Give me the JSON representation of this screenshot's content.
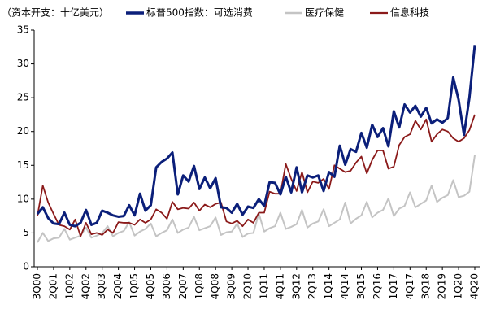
{
  "chart_data": {
    "type": "line",
    "title": "（资本开支：十亿美元）",
    "categories": [
      "3Q00",
      null,
      null,
      "2Q01",
      null,
      null,
      "1Q02",
      null,
      null,
      "4Q02",
      null,
      null,
      "3Q03",
      null,
      null,
      "2Q04",
      null,
      null,
      "1Q05",
      null,
      null,
      "4Q05",
      null,
      null,
      "3Q06",
      null,
      null,
      "2Q07",
      null,
      null,
      "1Q08",
      null,
      null,
      "4Q08",
      null,
      null,
      "3Q09",
      null,
      null,
      "2Q10",
      null,
      null,
      "1Q11",
      null,
      null,
      "4Q11",
      null,
      null,
      "3Q12",
      null,
      null,
      "2Q13",
      null,
      null,
      "1Q14",
      null,
      null,
      "4Q14",
      null,
      null,
      "3Q15",
      null,
      null,
      "2Q16",
      null,
      null,
      "1Q17",
      null,
      null,
      "4Q17",
      null,
      null,
      "3Q18",
      null,
      null,
      "2Q19",
      null,
      null,
      "1Q20",
      null,
      null,
      "4Q20"
    ],
    "series": [
      {
        "name": "标普500指数：可选消费",
        "color": "#0b1f7a",
        "width": 3,
        "values": [
          7.8,
          8.8,
          7.2,
          6.4,
          6.3,
          8.0,
          6.2,
          6.0,
          6.5,
          8.4,
          6.2,
          6.5,
          8.3,
          8.0,
          7.6,
          7.4,
          7.5,
          9.1,
          7.6,
          10.8,
          8.3,
          9.1,
          14.7,
          15.5,
          16.0,
          16.9,
          10.7,
          13.5,
          12.6,
          14.9,
          11.5,
          13.2,
          11.6,
          13.1,
          8.8,
          8.7,
          8.0,
          9.3,
          7.7,
          8.9,
          8.7,
          10.0,
          9.0,
          12.5,
          12.4,
          10.7,
          13.3,
          11.0,
          14.7,
          11.0,
          13.5,
          13.2,
          13.5,
          11.2,
          14.0,
          13.3,
          17.9,
          15.1,
          17.4,
          17.0,
          19.8,
          17.6,
          21.0,
          19.2,
          20.5,
          17.8,
          23.0,
          20.6,
          24.0,
          22.8,
          23.8,
          22.2,
          23.5,
          21.2,
          21.8,
          21.3,
          22.0,
          28.0,
          24.7,
          19.5,
          25.0,
          32.8
        ]
      },
      {
        "name": "医疗保健",
        "color": "#c4c4c4",
        "width": 2,
        "values": [
          3.6,
          5.0,
          3.8,
          4.2,
          4.3,
          5.6,
          4.0,
          4.3,
          4.6,
          5.8,
          4.3,
          4.6,
          5.0,
          6.0,
          4.5,
          5.0,
          5.3,
          6.6,
          4.6,
          5.2,
          5.6,
          6.4,
          4.5,
          5.0,
          5.4,
          7.0,
          5.0,
          5.5,
          5.8,
          7.4,
          5.4,
          5.7,
          6.0,
          7.3,
          4.7,
          5.1,
          5.2,
          6.4,
          4.4,
          4.9,
          5.0,
          7.9,
          5.2,
          5.7,
          6.0,
          8.0,
          5.6,
          5.9,
          6.3,
          8.4,
          5.8,
          6.4,
          6.7,
          8.5,
          6.0,
          6.5,
          7.0,
          9.5,
          6.4,
          7.1,
          7.6,
          9.6,
          7.3,
          8.0,
          8.4,
          10.1,
          7.5,
          8.6,
          9.0,
          11.0,
          8.8,
          9.3,
          9.8,
          12.0,
          9.6,
          10.2,
          10.6,
          12.8,
          10.3,
          10.5,
          11.1,
          16.5
        ]
      },
      {
        "name": "信息科技",
        "color": "#8b1a1a",
        "width": 1.8,
        "values": [
          7.5,
          12.0,
          9.5,
          7.8,
          6.2,
          6.0,
          5.5,
          7.0,
          4.5,
          6.5,
          4.8,
          5.0,
          4.7,
          5.5,
          5.0,
          6.6,
          6.5,
          6.5,
          6.2,
          7.0,
          6.5,
          7.0,
          8.5,
          8.0,
          7.1,
          9.6,
          8.5,
          8.7,
          8.6,
          9.5,
          8.3,
          9.2,
          8.8,
          9.3,
          9.5,
          6.7,
          6.4,
          6.8,
          6.0,
          7.0,
          6.5,
          8.0,
          8.0,
          11.1,
          10.8,
          10.8,
          15.2,
          13.0,
          11.2,
          14.0,
          11.0,
          12.6,
          12.4,
          13.0,
          11.5,
          15.0,
          14.5,
          14.0,
          14.2,
          15.4,
          16.3,
          13.8,
          15.8,
          17.2,
          17.2,
          14.5,
          14.8,
          18.0,
          19.2,
          19.6,
          21.6,
          20.3,
          21.8,
          18.5,
          19.6,
          20.3,
          20.0,
          19.0,
          18.5,
          19.0,
          20.2,
          22.5
        ]
      }
    ],
    "ylim": [
      0,
      35
    ],
    "yticks": [
      0,
      5,
      10,
      15,
      20,
      25,
      30,
      35
    ],
    "grid": false
  }
}
